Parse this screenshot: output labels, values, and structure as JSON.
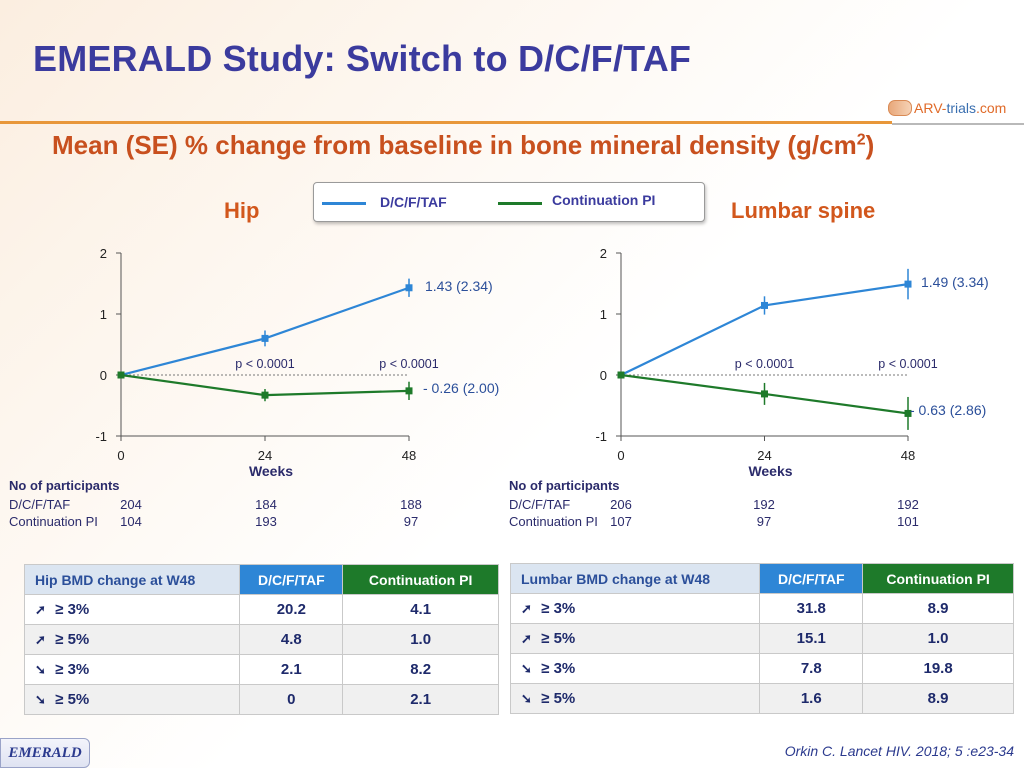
{
  "header": {
    "title": "EMERALD Study: Switch to D/C/F/TAF",
    "subtitle": "Mean (SE) % change from baseline in bone mineral density (g/cm",
    "subtitle_sup": "2",
    "subtitle_end": ")",
    "logo_a": "ARV-",
    "logo_b": "trials",
    "logo_c": ".com"
  },
  "legend": {
    "items": [
      {
        "label": "D/C/F/TAF",
        "color": "#2e86d6"
      },
      {
        "label": "Continuation PI",
        "color": "#1e7a2a"
      }
    ]
  },
  "chart_data": [
    {
      "type": "line",
      "title": "Hip",
      "xlabel": "Weeks",
      "x": [
        0,
        24,
        48
      ],
      "ylim": [
        -1,
        2
      ],
      "yticks": [
        "2",
        "1",
        "0",
        "-1"
      ],
      "xticks": [
        "0",
        "24",
        "48"
      ],
      "series": [
        {
          "name": "D/C/F/TAF",
          "color": "#2e86d6",
          "values": [
            0,
            0.6,
            1.43
          ],
          "se": [
            0,
            0.13,
            0.15
          ]
        },
        {
          "name": "Continuation PI",
          "color": "#1e7a2a",
          "values": [
            0,
            -0.33,
            -0.26
          ],
          "se": [
            0,
            0.1,
            0.15
          ]
        }
      ],
      "end_labels": [
        "1.43 (2.34)",
        "- 0.26 (2.00)"
      ],
      "pvalues": [
        "p < 0.0001",
        "p < 0.0001"
      ],
      "participants": {
        "heading": "No of participants",
        "rows": [
          {
            "label": "D/C/F/TAF",
            "values": [
              "204",
              "184",
              "188"
            ]
          },
          {
            "label": "Continuation PI",
            "values": [
              "104",
              "193",
              "97"
            ]
          }
        ]
      }
    },
    {
      "type": "line",
      "title": "Lumbar spine",
      "xlabel": "Weeks",
      "x": [
        0,
        24,
        48
      ],
      "ylim": [
        -1,
        2
      ],
      "yticks": [
        "2",
        "1",
        "0",
        "-1"
      ],
      "xticks": [
        "0",
        "24",
        "48"
      ],
      "series": [
        {
          "name": "D/C/F/TAF",
          "color": "#2e86d6",
          "values": [
            0,
            1.14,
            1.49
          ],
          "se": [
            0,
            0.15,
            0.25
          ]
        },
        {
          "name": "Continuation PI",
          "color": "#1e7a2a",
          "values": [
            0,
            -0.31,
            -0.63
          ],
          "se": [
            0,
            0.18,
            0.27
          ]
        }
      ],
      "end_labels": [
        "1.49 (3.34)",
        "- 0.63 (2.86)"
      ],
      "pvalues": [
        "p < 0.0001",
        "p < 0.0001"
      ],
      "participants": {
        "heading": "No of participants",
        "rows": [
          {
            "label": "D/C/F/TAF",
            "values": [
              "206",
              "192",
              "192"
            ]
          },
          {
            "label": "Continuation PI",
            "values": [
              "107",
              "97",
              "101"
            ]
          }
        ]
      }
    }
  ],
  "tables": [
    {
      "header": [
        "Hip BMD change at W48",
        "D/C/F/TAF",
        "Continuation PI"
      ],
      "rows": [
        {
          "dir": "up",
          "label": "≥ 3%",
          "dc": "20.2",
          "ci": "4.1"
        },
        {
          "dir": "up",
          "label": "≥ 5%",
          "dc": "4.8",
          "ci": "1.0"
        },
        {
          "dir": "down",
          "label": "≥ 3%",
          "dc": "2.1",
          "ci": "8.2"
        },
        {
          "dir": "down",
          "label": "≥ 5%",
          "dc": "0",
          "ci": "2.1"
        }
      ]
    },
    {
      "header": [
        "Lumbar BMD change at W48",
        "D/C/F/TAF",
        "Continuation PI"
      ],
      "rows": [
        {
          "dir": "up",
          "label": "≥ 3%",
          "dc": "31.8",
          "ci": "8.9"
        },
        {
          "dir": "up",
          "label": "≥ 5%",
          "dc": "15.1",
          "ci": "1.0"
        },
        {
          "dir": "down",
          "label": "≥ 3%",
          "dc": "7.8",
          "ci": "19.8"
        },
        {
          "dir": "down",
          "label": "≥ 5%",
          "dc": "1.6",
          "ci": "8.9"
        }
      ]
    }
  ],
  "footer": {
    "badge": "EMERALD",
    "citation": "Orkin C. Lancet HIV. 2018; 5 :e23-34"
  }
}
